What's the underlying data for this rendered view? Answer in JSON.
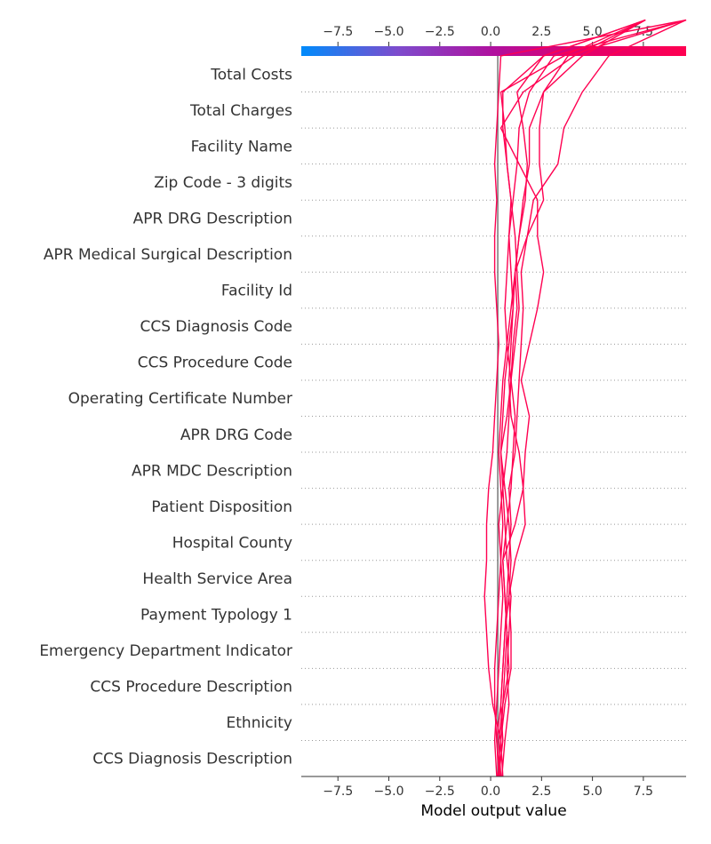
{
  "chart_data": {
    "type": "line",
    "subtype": "shap-decision-plot",
    "xlabel": "Model output value",
    "xlim": [
      -9.3,
      9.6
    ],
    "xticks": [
      -7.5,
      -5.0,
      -2.5,
      0.0,
      2.5,
      5.0,
      7.5
    ],
    "xtick_labels": [
      "−7.5",
      "−5.0",
      "−2.5",
      "0.0",
      "2.5",
      "5.0",
      "7.5"
    ],
    "base_value": 0.35,
    "colorbar": {
      "position": "top",
      "range": [
        -9.3,
        9.6
      ],
      "colors": [
        "#008bfb",
        "#7d4ccd",
        "#b0109e",
        "#e4006a",
        "#ff0051"
      ]
    },
    "line_color": "#ff0051",
    "grid": "dotted horizontal separators",
    "features": [
      "Total Costs",
      "Total Charges",
      "Facility Name",
      "Zip Code - 3 digits",
      "APR DRG Description",
      "APR Medical Surgical Description",
      "Facility Id",
      "CCS Diagnosis Code",
      "CCS Procedure Code",
      "Operating Certificate Number",
      "APR DRG Code",
      "APR MDC Description",
      "Patient Disposition",
      "Hospital County",
      "Health Service Area",
      "Payment Typology 1",
      "Emergency Department Indicator",
      "CCS Procedure Description",
      "Ethnicity",
      "CCS Diagnosis Description"
    ],
    "series": [
      {
        "values": [
          0.35,
          0.5,
          0.1,
          -0.1,
          -0.2,
          -0.3,
          -0.2,
          -0.2,
          -0.1,
          0.1,
          0.2,
          0.3,
          0.4,
          0.3,
          0.2,
          0.2,
          0.3,
          0.2,
          0.3,
          0.4,
          0.5,
          9.6
        ]
      },
      {
        "values": [
          0.45,
          0.3,
          0.2,
          0.2,
          0.3,
          0.4,
          0.5,
          0.6,
          0.5,
          0.4,
          0.5,
          0.6,
          0.8,
          1.0,
          1.2,
          1.8,
          2.6,
          2.4,
          2.4,
          2.6,
          4.5,
          7.6
        ]
      },
      {
        "values": [
          0.4,
          0.6,
          0.5,
          0.6,
          0.7,
          0.8,
          0.9,
          1.0,
          0.9,
          1.2,
          1.3,
          1.4,
          1.5,
          1.6,
          1.5,
          1.8,
          2.1,
          3.3,
          3.6,
          4.5,
          5.8,
          9.6
        ]
      },
      {
        "values": [
          0.5,
          0.4,
          0.6,
          0.7,
          0.8,
          0.7,
          0.6,
          0.8,
          1.0,
          1.1,
          1.2,
          1.0,
          1.1,
          1.3,
          1.2,
          1.4,
          1.6,
          1.9,
          1.9,
          2.6,
          3.8,
          9.6
        ]
      },
      {
        "values": [
          0.3,
          0.2,
          0.3,
          0.4,
          0.5,
          0.6,
          0.5,
          0.4,
          0.6,
          0.8,
          0.9,
          1.0,
          0.8,
          0.7,
          0.8,
          0.9,
          1.1,
          1.3,
          1.4,
          1.9,
          3.1,
          9.6
        ]
      },
      {
        "values": [
          0.55,
          0.7,
          0.9,
          0.8,
          0.9,
          1.0,
          0.8,
          0.7,
          0.6,
          0.5,
          0.6,
          0.7,
          0.9,
          1.1,
          1.2,
          1.4,
          1.7,
          1.8,
          1.6,
          1.3,
          2.6,
          7.6
        ]
      },
      {
        "values": [
          0.35,
          0.5,
          0.6,
          0.9,
          0.8,
          0.7,
          0.6,
          1.2,
          1.6,
          1.4,
          1.0,
          0.9,
          1.0,
          1.1,
          1.0,
          0.9,
          1.0,
          0.8,
          0.7,
          0.5,
          3.6,
          7.6
        ]
      },
      {
        "values": [
          0.6,
          0.5,
          0.7,
          1.0,
          1.0,
          0.9,
          1.2,
          1.7,
          1.6,
          1.7,
          1.9,
          1.5,
          1.9,
          2.3,
          2.6,
          2.3,
          2.3,
          1.4,
          0.5,
          1.6,
          4.1,
          7.6
        ]
      },
      {
        "values": [
          0.4,
          0.3,
          0.5,
          0.6,
          0.7,
          0.9,
          1.0,
          0.9,
          0.7,
          0.5,
          0.8,
          1.0,
          1.2,
          1.4,
          1.3,
          1.2,
          1.0,
          0.8,
          0.6,
          0.6,
          2.6,
          7.6
        ]
      }
    ]
  }
}
